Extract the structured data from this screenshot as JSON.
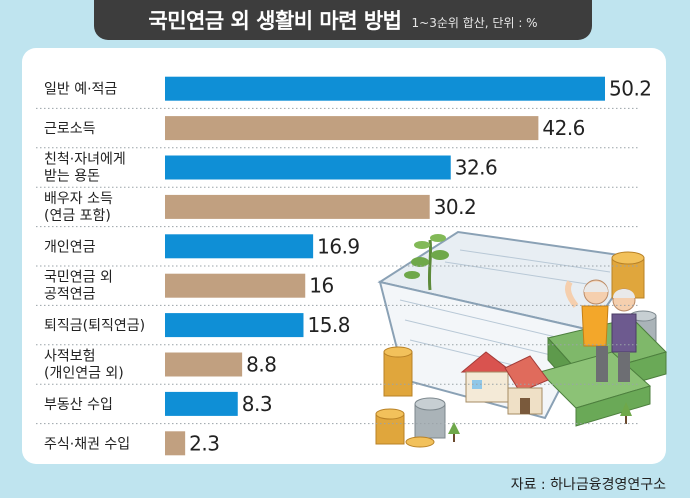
{
  "header": {
    "title": "국민연금 외 생활비 마련 방법",
    "subtitle": "1~3순위 합산, 단위 : %"
  },
  "source": "자료 : 하나금융경영연구소",
  "colors": {
    "blue": "#0f8fd6",
    "tan": "#c1a080",
    "background": "#bfe4ef"
  },
  "chart_data": {
    "type": "bar",
    "orientation": "horizontal",
    "title": "국민연금 외 생활비 마련 방법",
    "subtitle": "1~3순위 합산, 단위 : %",
    "categories": [
      [
        "일반 예·적금"
      ],
      [
        "근로소득"
      ],
      [
        "친척·자녀에게",
        "받는 용돈"
      ],
      [
        "배우자 소득",
        "(연금 포함)"
      ],
      [
        "개인연금"
      ],
      [
        "국민연금 외",
        "공적연금"
      ],
      [
        "퇴직금(퇴직연금)"
      ],
      [
        "사적보험",
        "(개인연금 외)"
      ],
      [
        "부동산 수입"
      ],
      [
        "주식·채권 수입"
      ]
    ],
    "values": [
      50.2,
      42.6,
      32.6,
      30.2,
      16.9,
      16,
      15.8,
      8.8,
      8.3,
      2.3
    ],
    "value_labels": [
      "50.2",
      "42.6",
      "32.6",
      "30.2",
      "16.9",
      "16",
      "15.8",
      "8.8",
      "8.3",
      "2.3"
    ],
    "bar_colors": [
      "#0f8fd6",
      "#c1a080",
      "#0f8fd6",
      "#c1a080",
      "#0f8fd6",
      "#c1a080",
      "#0f8fd6",
      "#c1a080",
      "#0f8fd6",
      "#c1a080"
    ],
    "xlim": [
      0,
      50.2
    ],
    "grid": false,
    "legend": "none"
  }
}
